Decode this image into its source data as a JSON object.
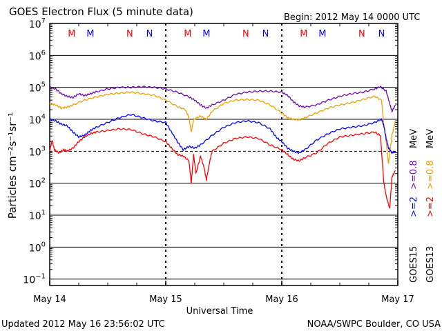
{
  "header": {
    "title": "GOES Electron Flux (5 minute data)",
    "begin": "Begin: 2012 May 14 0000 UTC"
  },
  "footer": {
    "updated": "Updated 2012 May 16 23:56:02 UTC",
    "source": "NOAA/SWPC Boulder, CO USA"
  },
  "axes": {
    "xlabel": "Universal Time",
    "ylabel": "Particles cm⁻²s⁻¹sr⁻¹",
    "y_ticks": [
      {
        "base": "10",
        "exp": "7",
        "value": 7
      },
      {
        "base": "10",
        "exp": "6",
        "value": 6
      },
      {
        "base": "10",
        "exp": "5",
        "value": 5
      },
      {
        "base": "10",
        "exp": "4",
        "value": 4
      },
      {
        "base": "10",
        "exp": "3",
        "value": 3
      },
      {
        "base": "10",
        "exp": "2",
        "value": 2
      },
      {
        "base": "10",
        "exp": "1",
        "value": 1
      },
      {
        "base": "10",
        "exp": "0",
        "value": 0
      },
      {
        "base": "10",
        "exp": "−1",
        "value": -1
      }
    ],
    "x_ticks": [
      {
        "label": "May 14",
        "day": 0
      },
      {
        "label": "May 15",
        "day": 1
      },
      {
        "label": "May 16",
        "day": 2
      },
      {
        "label": "May 17",
        "day": 3
      }
    ]
  },
  "markers": [
    {
      "text": "M",
      "day": 0.19,
      "color": "#ff0000"
    },
    {
      "text": "M",
      "day": 0.35,
      "color": "#0000ff"
    },
    {
      "text": "N",
      "day": 0.69,
      "color": "#ff0000"
    },
    {
      "text": "N",
      "day": 0.86,
      "color": "#0000ff"
    },
    {
      "text": "M",
      "day": 1.19,
      "color": "#ff0000"
    },
    {
      "text": "M",
      "day": 1.35,
      "color": "#0000ff"
    },
    {
      "text": "N",
      "day": 1.69,
      "color": "#ff0000"
    },
    {
      "text": "N",
      "day": 1.86,
      "color": "#0000ff"
    },
    {
      "text": "M",
      "day": 2.19,
      "color": "#ff0000"
    },
    {
      "text": "M",
      "day": 2.35,
      "color": "#0000ff"
    },
    {
      "text": "N",
      "day": 2.69,
      "color": "#ff0000"
    },
    {
      "text": "N",
      "day": 2.86,
      "color": "#0000ff"
    }
  ],
  "legend": {
    "goes15": {
      "label": "GOES15",
      "ge2": ">=2",
      "ge08": ">=0.8",
      "unit": "MeV",
      "ge2_color": "#0000ff",
      "ge08_color": "#6a0dad"
    },
    "goes13": {
      "label": "GOES13",
      "ge2": ">=2",
      "ge08": ">=0.8",
      "unit": "MeV",
      "ge2_color": "#ff0000",
      "ge08_color": "#f0a000"
    }
  },
  "chart_data": {
    "type": "line",
    "title": "GOES Electron Flux (5 minute data)",
    "xlabel": "Universal Time",
    "ylabel": "Particles cm⁻²s⁻¹sr⁻¹",
    "x_unit": "days since 2012 May 14 0000 UTC",
    "xlim": [
      0,
      3
    ],
    "ylim_log10": [
      -1.2,
      7
    ],
    "y_scale": "log",
    "reference_line_log10": 3,
    "series": [
      {
        "name": "GOES15 >=0.8 MeV",
        "color": "#6a0dad",
        "points": [
          [
            0,
            5.0
          ],
          [
            0.05,
            4.95
          ],
          [
            0.1,
            4.8
          ],
          [
            0.15,
            4.72
          ],
          [
            0.2,
            4.68
          ],
          [
            0.25,
            4.8
          ],
          [
            0.3,
            4.74
          ],
          [
            0.35,
            4.8
          ],
          [
            0.4,
            4.86
          ],
          [
            0.5,
            4.95
          ],
          [
            0.6,
            5.0
          ],
          [
            0.7,
            5.0
          ],
          [
            0.8,
            5.02
          ],
          [
            0.9,
            5.0
          ],
          [
            1.0,
            4.95
          ],
          [
            1.1,
            4.85
          ],
          [
            1.2,
            4.7
          ],
          [
            1.25,
            4.6
          ],
          [
            1.3,
            4.45
          ],
          [
            1.35,
            4.35
          ],
          [
            1.4,
            4.45
          ],
          [
            1.5,
            4.6
          ],
          [
            1.6,
            4.78
          ],
          [
            1.7,
            4.85
          ],
          [
            1.8,
            4.88
          ],
          [
            1.9,
            4.88
          ],
          [
            2.0,
            4.85
          ],
          [
            2.05,
            4.75
          ],
          [
            2.1,
            4.55
          ],
          [
            2.15,
            4.42
          ],
          [
            2.2,
            4.38
          ],
          [
            2.3,
            4.45
          ],
          [
            2.4,
            4.6
          ],
          [
            2.5,
            4.72
          ],
          [
            2.6,
            4.8
          ],
          [
            2.7,
            4.85
          ],
          [
            2.8,
            4.95
          ],
          [
            2.85,
            5.02
          ],
          [
            2.9,
            4.88
          ],
          [
            2.93,
            4.5
          ],
          [
            2.95,
            4.25
          ],
          [
            2.98,
            4.45
          ]
        ]
      },
      {
        "name": "GOES13 >=0.8 MeV",
        "color": "#f0a000",
        "points": [
          [
            0,
            4.5
          ],
          [
            0.05,
            4.45
          ],
          [
            0.1,
            4.35
          ],
          [
            0.15,
            4.38
          ],
          [
            0.2,
            4.45
          ],
          [
            0.3,
            4.6
          ],
          [
            0.4,
            4.7
          ],
          [
            0.5,
            4.78
          ],
          [
            0.6,
            4.82
          ],
          [
            0.7,
            4.85
          ],
          [
            0.8,
            4.8
          ],
          [
            0.9,
            4.75
          ],
          [
            1.0,
            4.6
          ],
          [
            1.1,
            4.4
          ],
          [
            1.17,
            4.3
          ],
          [
            1.2,
            4.05
          ],
          [
            1.22,
            3.6
          ],
          [
            1.24,
            4.0
          ],
          [
            1.3,
            4.1
          ],
          [
            1.35,
            4.0
          ],
          [
            1.4,
            4.25
          ],
          [
            1.5,
            4.5
          ],
          [
            1.6,
            4.6
          ],
          [
            1.7,
            4.62
          ],
          [
            1.8,
            4.6
          ],
          [
            1.9,
            4.45
          ],
          [
            2.0,
            4.2
          ],
          [
            2.05,
            4.05
          ],
          [
            2.1,
            4.0
          ],
          [
            2.15,
            3.98
          ],
          [
            2.2,
            4.05
          ],
          [
            2.3,
            4.2
          ],
          [
            2.4,
            4.35
          ],
          [
            2.5,
            4.45
          ],
          [
            2.6,
            4.52
          ],
          [
            2.7,
            4.62
          ],
          [
            2.8,
            4.72
          ],
          [
            2.86,
            4.6
          ],
          [
            2.88,
            3.8
          ],
          [
            2.9,
            3.3
          ],
          [
            2.92,
            2.6
          ],
          [
            2.95,
            3.5
          ],
          [
            2.98,
            3.95
          ]
        ]
      },
      {
        "name": "GOES15 >=2 MeV",
        "color": "#0000ff",
        "points": [
          [
            0,
            4.0
          ],
          [
            0.05,
            3.95
          ],
          [
            0.1,
            3.85
          ],
          [
            0.15,
            3.8
          ],
          [
            0.2,
            3.6
          ],
          [
            0.25,
            3.45
          ],
          [
            0.3,
            3.5
          ],
          [
            0.35,
            3.65
          ],
          [
            0.4,
            3.75
          ],
          [
            0.5,
            3.9
          ],
          [
            0.6,
            4.05
          ],
          [
            0.7,
            4.15
          ],
          [
            0.8,
            4.05
          ],
          [
            0.9,
            3.95
          ],
          [
            1.0,
            3.9
          ],
          [
            1.05,
            3.6
          ],
          [
            1.1,
            3.3
          ],
          [
            1.15,
            3.05
          ],
          [
            1.2,
            3.15
          ],
          [
            1.25,
            3.1
          ],
          [
            1.3,
            3.2
          ],
          [
            1.4,
            3.5
          ],
          [
            1.5,
            3.75
          ],
          [
            1.6,
            3.9
          ],
          [
            1.7,
            3.95
          ],
          [
            1.8,
            3.9
          ],
          [
            1.9,
            3.7
          ],
          [
            1.95,
            3.45
          ],
          [
            2.0,
            3.3
          ],
          [
            2.05,
            3.1
          ],
          [
            2.1,
            3.0
          ],
          [
            2.15,
            2.95
          ],
          [
            2.2,
            3.05
          ],
          [
            2.3,
            3.35
          ],
          [
            2.4,
            3.55
          ],
          [
            2.5,
            3.7
          ],
          [
            2.6,
            3.75
          ],
          [
            2.7,
            3.8
          ],
          [
            2.8,
            3.9
          ],
          [
            2.86,
            4.0
          ],
          [
            2.88,
            3.8
          ],
          [
            2.9,
            3.4
          ],
          [
            2.92,
            3.1
          ],
          [
            2.95,
            2.95
          ],
          [
            2.98,
            3.0
          ]
        ]
      },
      {
        "name": "GOES13 >=2 MeV",
        "color": "#ff0000",
        "points": [
          [
            0,
            3.0
          ],
          [
            0.02,
            3.35
          ],
          [
            0.04,
            3.05
          ],
          [
            0.08,
            2.95
          ],
          [
            0.12,
            3.05
          ],
          [
            0.15,
            3.0
          ],
          [
            0.2,
            3.1
          ],
          [
            0.25,
            3.3
          ],
          [
            0.3,
            3.45
          ],
          [
            0.35,
            3.55
          ],
          [
            0.4,
            3.6
          ],
          [
            0.5,
            3.65
          ],
          [
            0.6,
            3.7
          ],
          [
            0.7,
            3.68
          ],
          [
            0.8,
            3.55
          ],
          [
            0.9,
            3.45
          ],
          [
            1.0,
            3.3
          ],
          [
            1.05,
            3.1
          ],
          [
            1.1,
            2.9
          ],
          [
            1.15,
            2.85
          ],
          [
            1.2,
            2.7
          ],
          [
            1.22,
            2.0
          ],
          [
            1.24,
            2.9
          ],
          [
            1.26,
            2.3
          ],
          [
            1.3,
            2.85
          ],
          [
            1.33,
            2.5
          ],
          [
            1.35,
            2.1
          ],
          [
            1.38,
            2.7
          ],
          [
            1.4,
            3.0
          ],
          [
            1.5,
            3.25
          ],
          [
            1.6,
            3.4
          ],
          [
            1.7,
            3.45
          ],
          [
            1.8,
            3.4
          ],
          [
            1.9,
            3.2
          ],
          [
            2.0,
            3.05
          ],
          [
            2.05,
            2.9
          ],
          [
            2.1,
            2.75
          ],
          [
            2.15,
            2.7
          ],
          [
            2.2,
            2.8
          ],
          [
            2.3,
            2.95
          ],
          [
            2.4,
            3.25
          ],
          [
            2.5,
            3.45
          ],
          [
            2.6,
            3.5
          ],
          [
            2.7,
            3.55
          ],
          [
            2.8,
            3.6
          ],
          [
            2.85,
            3.5
          ],
          [
            2.88,
            2.0
          ],
          [
            2.9,
            1.6
          ],
          [
            2.93,
            1.2
          ],
          [
            2.95,
            2.2
          ],
          [
            2.98,
            2.4
          ]
        ]
      }
    ]
  }
}
